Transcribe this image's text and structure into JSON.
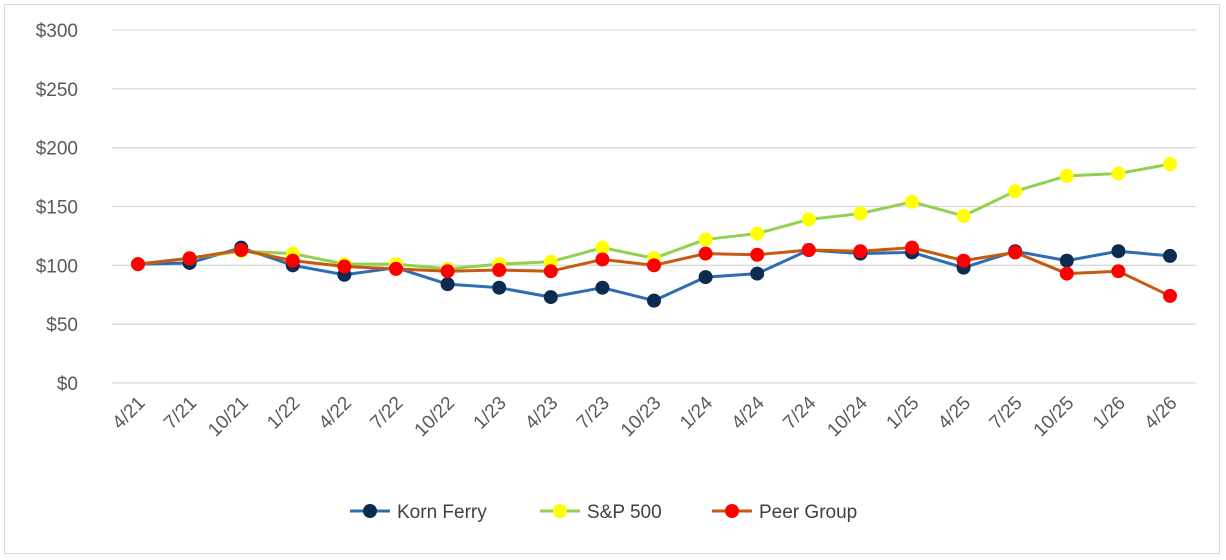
{
  "chart_data": {
    "type": "line",
    "categories": [
      "4/21",
      "7/21",
      "10/21",
      "1/22",
      "4/22",
      "7/22",
      "10/22",
      "1/23",
      "4/23",
      "7/23",
      "10/23",
      "1/24",
      "4/24",
      "7/24",
      "10/24",
      "1/25",
      "4/25",
      "7/25",
      "10/25",
      "1/26",
      "4/26"
    ],
    "ylim": [
      0,
      300
    ],
    "yticks": [
      0,
      50,
      100,
      150,
      200,
      250,
      300
    ],
    "ytick_labels": [
      "$0",
      "$50",
      "$100",
      "$150",
      "$200",
      "$250",
      "$300"
    ],
    "grid": true,
    "legend_position": "bottom",
    "series": [
      {
        "name": "Korn Ferry",
        "line_color": "#2e6db4",
        "marker_color": "#0d2a4f",
        "values": [
          101,
          102,
          115,
          100,
          92,
          98,
          84,
          81,
          73,
          81,
          70,
          90,
          93,
          113,
          110,
          111,
          98,
          112,
          104,
          112,
          108
        ]
      },
      {
        "name": "S&P 500",
        "line_color": "#92d050",
        "marker_color": "#ffff00",
        "values": [
          101,
          106,
          112,
          110,
          101,
          101,
          97,
          101,
          103,
          115,
          106,
          122,
          127,
          139,
          144,
          154,
          142,
          163,
          176,
          178,
          186
        ]
      },
      {
        "name": "Peer Group",
        "line_color": "#c55a11",
        "marker_color": "#ff0000",
        "values": [
          101,
          106,
          113,
          104,
          99,
          97,
          95,
          96,
          95,
          105,
          100,
          110,
          109,
          113,
          112,
          115,
          104,
          111,
          93,
          95,
          74
        ]
      }
    ]
  }
}
